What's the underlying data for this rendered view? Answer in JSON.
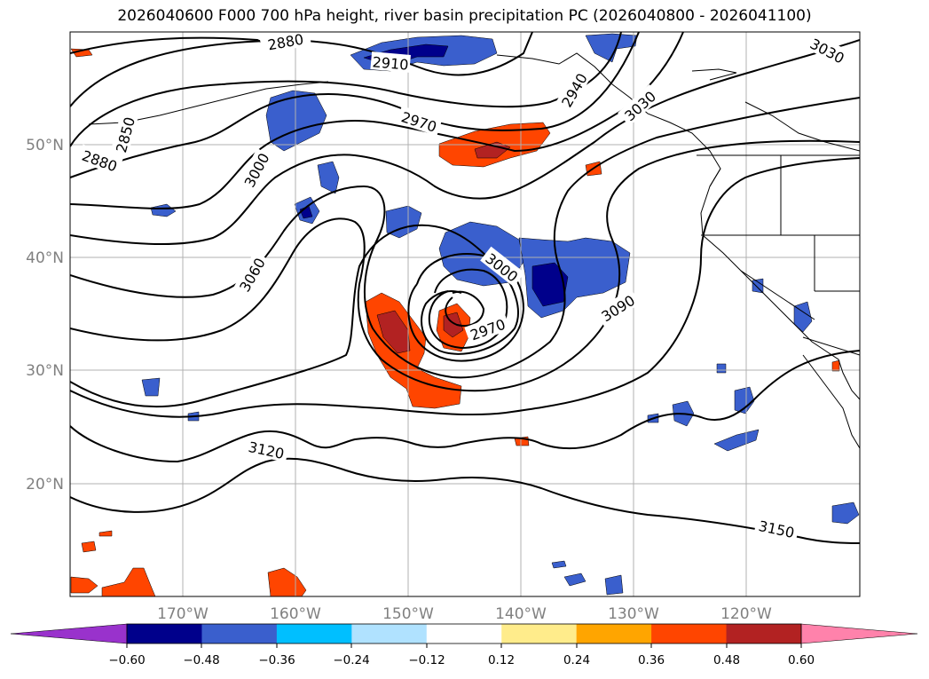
{
  "title": "2026040600 F000 700 hPa height, river basin precipitation PC (2026040800 - 2026041100)",
  "map": {
    "lon_ticks": [
      "170°W",
      "160°W",
      "150°W",
      "140°W",
      "130°W",
      "120°W"
    ],
    "lat_ticks": [
      "50°N",
      "40°N",
      "30°N",
      "20°N"
    ],
    "contour_labels": [
      "2880",
      "2850",
      "2880",
      "3000",
      "2910",
      "2970",
      "2940",
      "3030",
      "3060",
      "3000",
      "2970",
      "3090",
      "3120",
      "3150",
      "3030"
    ]
  },
  "colorbar": {
    "tick_labels": [
      "−0.60",
      "−0.48",
      "−0.36",
      "−0.24",
      "−0.12",
      "0.12",
      "0.24",
      "0.36",
      "0.48",
      "0.60"
    ],
    "colors": [
      "#9932cc",
      "#00008b",
      "#3a5fcd",
      "#00bfff",
      "#b0e2ff",
      "#ffffff",
      "#ffec8b",
      "#ffa500",
      "#ff4500",
      "#b22222",
      "#ff82ab"
    ]
  }
}
